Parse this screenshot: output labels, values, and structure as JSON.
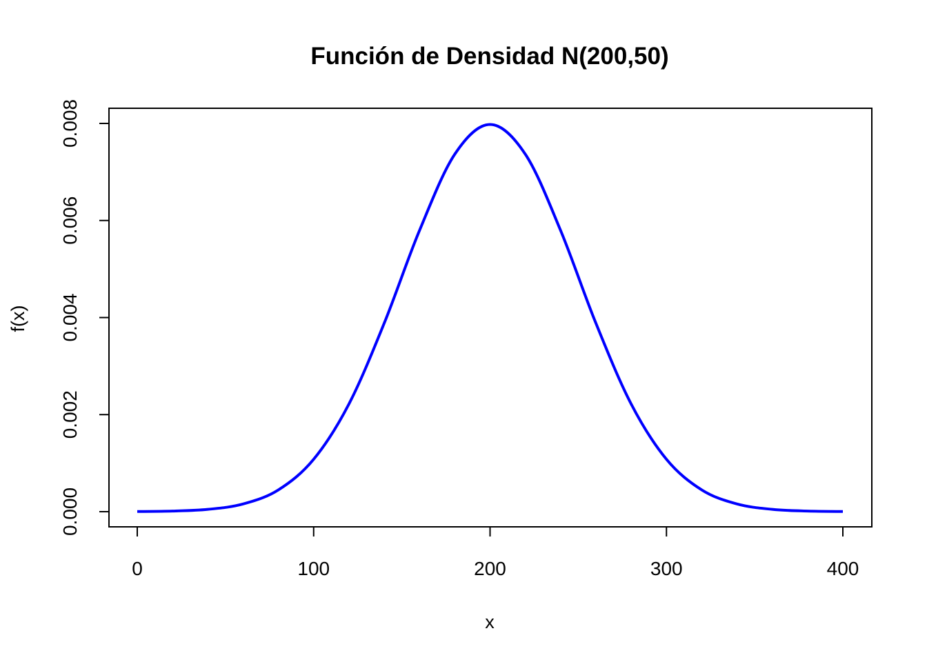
{
  "chart_data": {
    "type": "line",
    "title": "Función de Densidad N(200,50)",
    "xlabel": "x",
    "ylabel": "f(x)",
    "xlim": [
      0,
      400
    ],
    "ylim": [
      0,
      0.008
    ],
    "x_ticks": [
      "0",
      "100",
      "200",
      "300",
      "400"
    ],
    "y_ticks": [
      "0.000",
      "0.002",
      "0.004",
      "0.006",
      "0.008"
    ],
    "grid": false,
    "colors": {
      "line": "#0000ff",
      "axis": "#000000",
      "background": "#ffffff"
    },
    "series": [
      {
        "x": [
          0,
          20,
          40,
          60,
          80,
          100,
          120,
          140,
          160,
          180,
          200,
          220,
          240,
          260,
          280,
          300,
          320,
          340,
          360,
          380,
          400
        ],
        "y": [
          2.7e-06,
          1.23e-05,
          4.77e-05,
          0.0001586,
          0.0004491,
          0.0010798,
          0.0022184,
          0.0038837,
          0.0057938,
          0.0073654,
          0.0079788,
          0.0073654,
          0.0057938,
          0.0038837,
          0.0022184,
          0.0010798,
          0.0004491,
          0.0001586,
          4.77e-05,
          1.23e-05,
          2.7e-06
        ]
      }
    ]
  }
}
